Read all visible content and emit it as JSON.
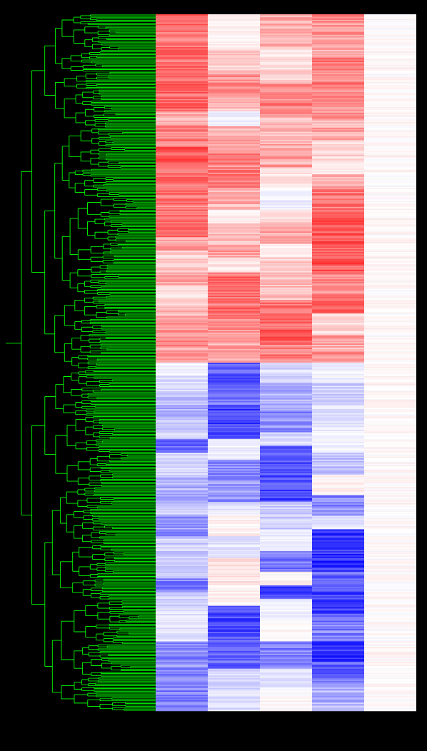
{
  "colors": {
    "background": "#000000",
    "dendrogram": "#00ff00",
    "high": "#ff0000",
    "mid": "#ffffff",
    "low": "#0000ff"
  },
  "chart_data": {
    "type": "heatmap",
    "title": "",
    "xlabel": "",
    "ylabel": "",
    "row_count": 510,
    "dendrogram": {
      "side": "left",
      "leaf_order": "clustered",
      "top_split_fraction": 0.51
    },
    "color_scale": {
      "min": -1,
      "max": 1,
      "low_color": "#0000ff",
      "mid_color": "#ffffff",
      "high_color": "#ff0000"
    },
    "columns": [
      {
        "segments": [
          {
            "from": 0.0,
            "to": 0.07,
            "value": 0.55
          },
          {
            "from": 0.07,
            "to": 0.14,
            "value": 0.6
          },
          {
            "from": 0.14,
            "to": 0.16,
            "value": 0.3
          },
          {
            "from": 0.16,
            "to": 0.19,
            "value": 0.45
          },
          {
            "from": 0.19,
            "to": 0.22,
            "value": 0.65
          },
          {
            "from": 0.22,
            "to": 0.26,
            "value": 0.55
          },
          {
            "from": 0.26,
            "to": 0.28,
            "value": 0.5
          },
          {
            "from": 0.28,
            "to": 0.32,
            "value": 0.55
          },
          {
            "from": 0.32,
            "to": 0.34,
            "value": 0.35
          },
          {
            "from": 0.34,
            "to": 0.37,
            "value": 0.2
          },
          {
            "from": 0.37,
            "to": 0.39,
            "value": 0.35
          },
          {
            "from": 0.39,
            "to": 0.42,
            "value": 0.15
          },
          {
            "from": 0.42,
            "to": 0.44,
            "value": 0.35
          },
          {
            "from": 0.44,
            "to": 0.47,
            "value": 0.45
          },
          {
            "from": 0.47,
            "to": 0.5,
            "value": 0.4
          },
          {
            "from": 0.5,
            "to": 0.52,
            "value": -0.05
          },
          {
            "from": 0.52,
            "to": 0.55,
            "value": -0.15
          },
          {
            "from": 0.55,
            "to": 0.58,
            "value": -0.3
          },
          {
            "from": 0.58,
            "to": 0.61,
            "value": -0.2
          },
          {
            "from": 0.61,
            "to": 0.63,
            "value": -0.6
          },
          {
            "from": 0.63,
            "to": 0.66,
            "value": -0.15
          },
          {
            "from": 0.66,
            "to": 0.7,
            "value": -0.3
          },
          {
            "from": 0.7,
            "to": 0.72,
            "value": -0.2
          },
          {
            "from": 0.72,
            "to": 0.75,
            "value": -0.4
          },
          {
            "from": 0.75,
            "to": 0.79,
            "value": -0.2
          },
          {
            "from": 0.79,
            "to": 0.81,
            "value": -0.15
          },
          {
            "from": 0.81,
            "to": 0.83,
            "value": -0.5
          },
          {
            "from": 0.83,
            "to": 0.85,
            "value": -0.2
          },
          {
            "from": 0.85,
            "to": 0.9,
            "value": -0.1
          },
          {
            "from": 0.9,
            "to": 0.94,
            "value": -0.45
          },
          {
            "from": 0.94,
            "to": 1.0,
            "value": -0.5
          }
        ]
      },
      {
        "segments": [
          {
            "from": 0.0,
            "to": 0.05,
            "value": 0.05
          },
          {
            "from": 0.05,
            "to": 0.08,
            "value": 0.2
          },
          {
            "from": 0.08,
            "to": 0.12,
            "value": 0.4
          },
          {
            "from": 0.12,
            "to": 0.14,
            "value": 0.25
          },
          {
            "from": 0.14,
            "to": 0.16,
            "value": -0.05
          },
          {
            "from": 0.16,
            "to": 0.2,
            "value": 0.3
          },
          {
            "from": 0.2,
            "to": 0.22,
            "value": 0.45
          },
          {
            "from": 0.22,
            "to": 0.25,
            "value": 0.5
          },
          {
            "from": 0.25,
            "to": 0.28,
            "value": 0.3
          },
          {
            "from": 0.28,
            "to": 0.3,
            "value": 0.05
          },
          {
            "from": 0.3,
            "to": 0.33,
            "value": 0.25
          },
          {
            "from": 0.33,
            "to": 0.35,
            "value": 0.35
          },
          {
            "from": 0.35,
            "to": 0.37,
            "value": 0.1
          },
          {
            "from": 0.37,
            "to": 0.43,
            "value": 0.55
          },
          {
            "from": 0.43,
            "to": 0.47,
            "value": 0.45
          },
          {
            "from": 0.47,
            "to": 0.5,
            "value": 0.35
          },
          {
            "from": 0.5,
            "to": 0.53,
            "value": -0.65
          },
          {
            "from": 0.53,
            "to": 0.56,
            "value": -0.55
          },
          {
            "from": 0.56,
            "to": 0.61,
            "value": -0.75
          },
          {
            "from": 0.61,
            "to": 0.64,
            "value": -0.05
          },
          {
            "from": 0.64,
            "to": 0.67,
            "value": -0.45
          },
          {
            "from": 0.67,
            "to": 0.7,
            "value": -0.4
          },
          {
            "from": 0.7,
            "to": 0.72,
            "value": -0.1
          },
          {
            "from": 0.72,
            "to": 0.75,
            "value": 0.05
          },
          {
            "from": 0.75,
            "to": 0.78,
            "value": -0.1
          },
          {
            "from": 0.78,
            "to": 0.82,
            "value": 0.1
          },
          {
            "from": 0.82,
            "to": 0.85,
            "value": 0.05
          },
          {
            "from": 0.85,
            "to": 0.89,
            "value": -0.7
          },
          {
            "from": 0.89,
            "to": 0.94,
            "value": -0.6
          },
          {
            "from": 0.94,
            "to": 1.0,
            "value": -0.15
          }
        ]
      },
      {
        "segments": [
          {
            "from": 0.0,
            "to": 0.05,
            "value": 0.3
          },
          {
            "from": 0.05,
            "to": 0.08,
            "value": 0.1
          },
          {
            "from": 0.08,
            "to": 0.1,
            "value": 0.2
          },
          {
            "from": 0.1,
            "to": 0.15,
            "value": 0.5
          },
          {
            "from": 0.15,
            "to": 0.18,
            "value": 0.25
          },
          {
            "from": 0.18,
            "to": 0.22,
            "value": 0.35
          },
          {
            "from": 0.22,
            "to": 0.25,
            "value": 0.1
          },
          {
            "from": 0.25,
            "to": 0.28,
            "value": -0.05
          },
          {
            "from": 0.28,
            "to": 0.3,
            "value": 0.15
          },
          {
            "from": 0.3,
            "to": 0.33,
            "value": 0.35
          },
          {
            "from": 0.33,
            "to": 0.35,
            "value": 0.05
          },
          {
            "from": 0.35,
            "to": 0.37,
            "value": 0.2
          },
          {
            "from": 0.37,
            "to": 0.41,
            "value": 0.25
          },
          {
            "from": 0.41,
            "to": 0.44,
            "value": 0.55
          },
          {
            "from": 0.44,
            "to": 0.47,
            "value": 0.6
          },
          {
            "from": 0.47,
            "to": 0.5,
            "value": 0.5
          },
          {
            "from": 0.5,
            "to": 0.53,
            "value": -0.15
          },
          {
            "from": 0.53,
            "to": 0.57,
            "value": -0.3
          },
          {
            "from": 0.57,
            "to": 0.6,
            "value": -0.45
          },
          {
            "from": 0.6,
            "to": 0.62,
            "value": -0.15
          },
          {
            "from": 0.62,
            "to": 0.7,
            "value": -0.7
          },
          {
            "from": 0.7,
            "to": 0.74,
            "value": -0.2
          },
          {
            "from": 0.74,
            "to": 0.77,
            "value": -0.05
          },
          {
            "from": 0.77,
            "to": 0.8,
            "value": -0.55
          },
          {
            "from": 0.8,
            "to": 0.82,
            "value": 0.05
          },
          {
            "from": 0.82,
            "to": 0.84,
            "value": -0.7
          },
          {
            "from": 0.84,
            "to": 0.87,
            "value": -0.05
          },
          {
            "from": 0.87,
            "to": 0.9,
            "value": 0.02
          },
          {
            "from": 0.9,
            "to": 0.94,
            "value": -0.5
          },
          {
            "from": 0.94,
            "to": 0.97,
            "value": -0.1
          },
          {
            "from": 0.97,
            "to": 1.0,
            "value": 0.02
          }
        ]
      },
      {
        "segments": [
          {
            "from": 0.0,
            "to": 0.03,
            "value": 0.45
          },
          {
            "from": 0.03,
            "to": 0.06,
            "value": 0.35
          },
          {
            "from": 0.06,
            "to": 0.12,
            "value": 0.5
          },
          {
            "from": 0.12,
            "to": 0.15,
            "value": 0.4
          },
          {
            "from": 0.15,
            "to": 0.18,
            "value": 0.35
          },
          {
            "from": 0.18,
            "to": 0.21,
            "value": 0.15
          },
          {
            "from": 0.21,
            "to": 0.23,
            "value": 0.05
          },
          {
            "from": 0.23,
            "to": 0.25,
            "value": 0.35
          },
          {
            "from": 0.25,
            "to": 0.28,
            "value": 0.55
          },
          {
            "from": 0.28,
            "to": 0.37,
            "value": 0.65
          },
          {
            "from": 0.37,
            "to": 0.41,
            "value": 0.45
          },
          {
            "from": 0.41,
            "to": 0.43,
            "value": 0.6
          },
          {
            "from": 0.43,
            "to": 0.46,
            "value": 0.15
          },
          {
            "from": 0.46,
            "to": 0.48,
            "value": 0.35
          },
          {
            "from": 0.48,
            "to": 0.5,
            "value": 0.45
          },
          {
            "from": 0.5,
            "to": 0.53,
            "value": -0.05
          },
          {
            "from": 0.53,
            "to": 0.56,
            "value": -0.2
          },
          {
            "from": 0.56,
            "to": 0.6,
            "value": -0.1
          },
          {
            "from": 0.6,
            "to": 0.63,
            "value": -0.05
          },
          {
            "from": 0.63,
            "to": 0.66,
            "value": -0.25
          },
          {
            "from": 0.66,
            "to": 0.69,
            "value": 0.05
          },
          {
            "from": 0.69,
            "to": 0.72,
            "value": -0.45
          },
          {
            "from": 0.72,
            "to": 0.74,
            "value": -0.1
          },
          {
            "from": 0.74,
            "to": 0.8,
            "value": -0.8
          },
          {
            "from": 0.8,
            "to": 0.83,
            "value": -0.6
          },
          {
            "from": 0.83,
            "to": 0.86,
            "value": -0.75
          },
          {
            "from": 0.86,
            "to": 0.9,
            "value": -0.5
          },
          {
            "from": 0.9,
            "to": 0.93,
            "value": -0.8
          },
          {
            "from": 0.93,
            "to": 0.96,
            "value": -0.6
          },
          {
            "from": 0.96,
            "to": 1.0,
            "value": -0.3
          }
        ]
      },
      {
        "segments": [
          {
            "from": 0.0,
            "to": 1.0,
            "value": 0.02
          }
        ]
      }
    ]
  }
}
